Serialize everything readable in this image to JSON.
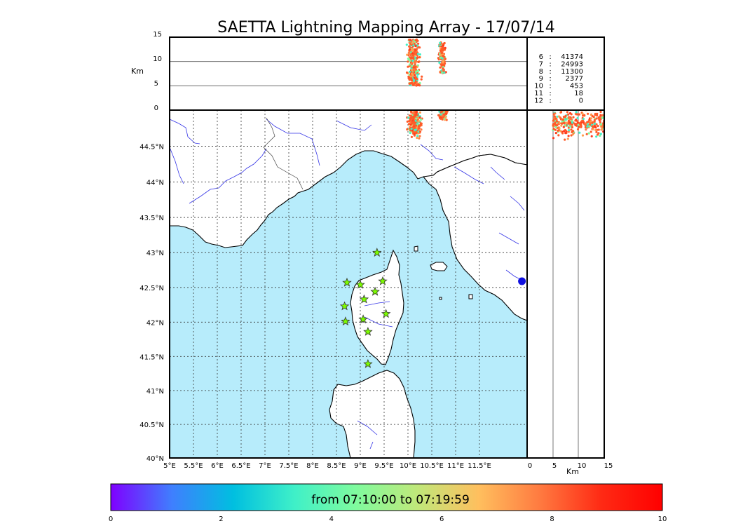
{
  "title": "SAETTA Lightning Mapping Array - 17/07/14",
  "colors": {
    "sea": "#b7ecfb",
    "land": "#ffffff",
    "river": "#3434e6",
    "coast": "#000000",
    "grid": "#333333",
    "station": "#7cfc00",
    "highlight_row": "#ff0000",
    "lightning_main": "#ff5a28"
  },
  "chart_data": [
    {
      "type": "scatter",
      "panel": "map",
      "xlim": [
        5,
        12.5
      ],
      "ylim": [
        40,
        45
      ],
      "x_ticks": [
        5,
        5.5,
        6,
        6.5,
        7,
        7.5,
        8,
        8.5,
        9,
        9.5,
        10,
        10.5,
        11,
        11.5
      ],
      "x_tick_labels": [
        "5°E",
        "5.5°E",
        "6°E",
        "6.5°E",
        "7°E",
        "7.5°E",
        "8°E",
        "8.5°E",
        "9°E",
        "9.5°E",
        "10°E",
        "10.5°E",
        "11°E",
        "11.5°E"
      ],
      "y_ticks": [
        40,
        40.5,
        41,
        41.5,
        42,
        42.5,
        43,
        43.5,
        44,
        44.5
      ],
      "y_tick_labels": [
        "40°N",
        "40.5°N",
        "41°N",
        "41.5°N",
        "42°N",
        "42.5°N",
        "43°N",
        "43.5°N",
        "44°N",
        "44.5°N"
      ],
      "grid": true,
      "stations": [
        {
          "lon": 9.35,
          "lat": 43.0
        },
        {
          "lon": 8.72,
          "lat": 42.57
        },
        {
          "lon": 9.0,
          "lat": 42.54
        },
        {
          "lon": 9.47,
          "lat": 42.59
        },
        {
          "lon": 9.31,
          "lat": 42.44
        },
        {
          "lon": 9.08,
          "lat": 42.33
        },
        {
          "lon": 8.67,
          "lat": 42.23
        },
        {
          "lon": 9.54,
          "lat": 42.12
        },
        {
          "lon": 8.69,
          "lat": 42.01
        },
        {
          "lon": 9.06,
          "lat": 42.04
        },
        {
          "lon": 9.16,
          "lat": 41.86
        },
        {
          "lon": 9.16,
          "lat": 41.39
        }
      ],
      "lightning_clusters": [
        {
          "lon": 10.15,
          "lat": 44.82,
          "spread_lon": 0.22,
          "spread_lat": 0.18,
          "count": 260
        },
        {
          "lon": 10.72,
          "lat": 44.93,
          "spread_lon": 0.15,
          "spread_lat": 0.07,
          "count": 90
        }
      ],
      "extra_marker": {
        "lon": 12.45,
        "lat": 42.59
      }
    },
    {
      "type": "scatter",
      "panel": "altitude-vs-longitude",
      "ylabel": "Km",
      "ylim": [
        0,
        15
      ],
      "y_ticks": [
        0,
        5,
        10,
        15
      ],
      "gridlines": [
        5,
        10
      ],
      "clusters": [
        {
          "lon": 10.12,
          "alt_min": 5,
          "alt_max": 14.5,
          "count": 300
        },
        {
          "lon": 10.72,
          "alt_min": 7.5,
          "alt_max": 14,
          "count": 120
        }
      ]
    },
    {
      "type": "scatter",
      "panel": "latitude-vs-altitude",
      "xlabel": "Km",
      "xlim": [
        0,
        15
      ],
      "x_ticks": [
        0,
        5,
        10,
        15
      ],
      "gridlines": [
        5,
        10
      ],
      "clusters": [
        {
          "lat": 44.82,
          "alt_min": 5,
          "alt_max": 15,
          "count": 300
        }
      ]
    },
    {
      "type": "table",
      "panel": "station-counts",
      "rows": [
        {
          "n": "6",
          "count": "41374"
        },
        {
          "n": "7",
          "count": "24993",
          "highlight": true
        },
        {
          "n": "8",
          "count": "11300"
        },
        {
          "n": "9",
          "count": "2377"
        },
        {
          "n": "10",
          "count": "453"
        },
        {
          "n": "11",
          "count": "18"
        },
        {
          "n": "12",
          "count": "0"
        }
      ]
    }
  ],
  "colorbar": {
    "label": "from 07:10:00 to 07:19:59",
    "ticks": [
      "0",
      "2",
      "4",
      "6",
      "8",
      "10"
    ],
    "stops": [
      "#7f00ff",
      "#3f7ffe",
      "#00bfe0",
      "#3ff0c8",
      "#7ffb9e",
      "#c0e87a",
      "#ffbf5e",
      "#ff7a40",
      "#ff2a14",
      "#ff0000"
    ]
  }
}
